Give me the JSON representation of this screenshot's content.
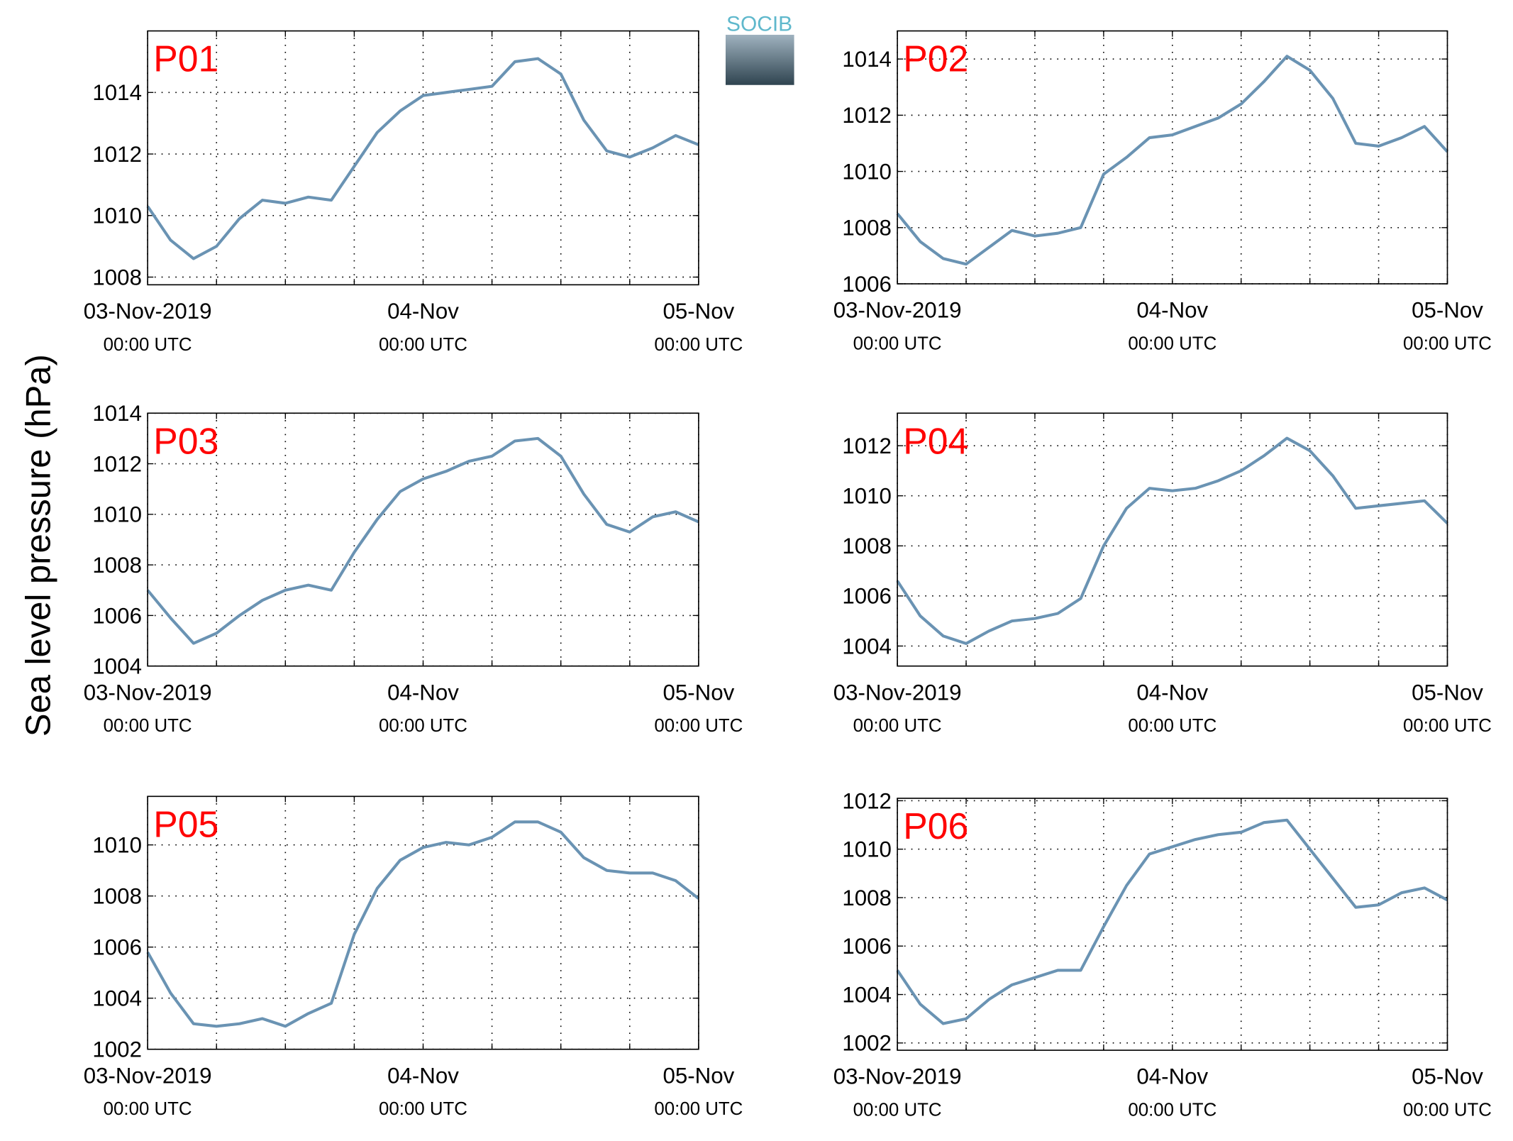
{
  "ylabel": "Sea level pressure (hPa)",
  "logo": "SOCIB",
  "chart_data": [
    {
      "type": "line",
      "title": "P01",
      "color": "#6a93b3",
      "x": [
        0,
        2,
        4,
        6,
        8,
        10,
        12,
        14,
        16,
        18,
        20,
        22,
        24,
        26,
        28,
        30,
        32,
        34,
        36,
        38,
        40,
        42,
        44,
        46,
        48
      ],
      "values": [
        1010.3,
        1009.2,
        1008.6,
        1009.0,
        1009.9,
        1010.5,
        1010.4,
        1010.6,
        1010.5,
        1011.6,
        1012.7,
        1013.4,
        1013.9,
        1014.0,
        1014.1,
        1014.2,
        1015.0,
        1015.1,
        1014.6,
        1013.1,
        1012.1,
        1011.9,
        1012.2,
        1012.6,
        1012.3
      ],
      "xlim": [
        0,
        48
      ],
      "xticks": [
        {
          "value": 0,
          "label": [
            "03-Nov-2019",
            "00:00 UTC"
          ]
        },
        {
          "value": 6,
          "label": null
        },
        {
          "value": 12,
          "label": null
        },
        {
          "value": 18,
          "label": null
        },
        {
          "value": 24,
          "label": [
            "04-Nov",
            "00:00 UTC"
          ]
        },
        {
          "value": 30,
          "label": null
        },
        {
          "value": 36,
          "label": null
        },
        {
          "value": 42,
          "label": null
        },
        {
          "value": 48,
          "label": [
            "05-Nov",
            "00:00 UTC"
          ]
        }
      ],
      "ylim": [
        1007.75,
        1016
      ],
      "yticks": [
        1008,
        1010,
        1012,
        1014
      ],
      "grid": true
    },
    {
      "type": "line",
      "title": "P02",
      "color": "#6a93b3",
      "x": [
        0,
        2,
        4,
        6,
        8,
        10,
        12,
        14,
        16,
        18,
        20,
        22,
        24,
        26,
        28,
        30,
        32,
        34,
        36,
        38,
        40,
        42,
        44,
        46,
        48
      ],
      "values": [
        1008.5,
        1007.5,
        1006.9,
        1006.7,
        1007.3,
        1007.9,
        1007.7,
        1007.8,
        1008.0,
        1009.9,
        1010.5,
        1011.2,
        1011.3,
        1011.6,
        1011.9,
        1012.4,
        1013.2,
        1014.1,
        1013.6,
        1012.6,
        1011.0,
        1010.9,
        1011.2,
        1011.6,
        1010.7
      ],
      "xlim": [
        0,
        48
      ],
      "xticks": [
        {
          "value": 0,
          "label": [
            "03-Nov-2019",
            "00:00 UTC"
          ]
        },
        {
          "value": 6,
          "label": null
        },
        {
          "value": 12,
          "label": null
        },
        {
          "value": 18,
          "label": null
        },
        {
          "value": 24,
          "label": [
            "04-Nov",
            "00:00 UTC"
          ]
        },
        {
          "value": 30,
          "label": null
        },
        {
          "value": 36,
          "label": null
        },
        {
          "value": 42,
          "label": null
        },
        {
          "value": 48,
          "label": [
            "05-Nov",
            "00:00 UTC"
          ]
        }
      ],
      "ylim": [
        1006,
        1015
      ],
      "yticks": [
        1006,
        1008,
        1010,
        1012,
        1014
      ],
      "grid": true
    },
    {
      "type": "line",
      "title": "P03",
      "color": "#6a93b3",
      "x": [
        0,
        2,
        4,
        6,
        8,
        10,
        12,
        14,
        16,
        18,
        20,
        22,
        24,
        26,
        28,
        30,
        32,
        34,
        36,
        38,
        40,
        42,
        44,
        46,
        48
      ],
      "values": [
        1007.0,
        1005.9,
        1004.9,
        1005.3,
        1006.0,
        1006.6,
        1007.0,
        1007.2,
        1007.0,
        1008.5,
        1009.8,
        1010.9,
        1011.4,
        1011.7,
        1012.1,
        1012.3,
        1012.9,
        1013.0,
        1012.3,
        1010.8,
        1009.6,
        1009.3,
        1009.9,
        1010.1,
        1009.7
      ],
      "xlim": [
        0,
        48
      ],
      "xticks": [
        {
          "value": 0,
          "label": [
            "03-Nov-2019",
            "00:00 UTC"
          ]
        },
        {
          "value": 6,
          "label": null
        },
        {
          "value": 12,
          "label": null
        },
        {
          "value": 18,
          "label": null
        },
        {
          "value": 24,
          "label": [
            "04-Nov",
            "00:00 UTC"
          ]
        },
        {
          "value": 30,
          "label": null
        },
        {
          "value": 36,
          "label": null
        },
        {
          "value": 42,
          "label": null
        },
        {
          "value": 48,
          "label": [
            "05-Nov",
            "00:00 UTC"
          ]
        }
      ],
      "ylim": [
        1004,
        1014
      ],
      "yticks": [
        1004,
        1006,
        1008,
        1010,
        1012,
        1014
      ],
      "grid": true
    },
    {
      "type": "line",
      "title": "P04",
      "color": "#6a93b3",
      "x": [
        0,
        2,
        4,
        6,
        8,
        10,
        12,
        14,
        16,
        18,
        20,
        22,
        24,
        26,
        28,
        30,
        32,
        34,
        36,
        38,
        40,
        42,
        44,
        46,
        48
      ],
      "values": [
        1006.6,
        1005.2,
        1004.4,
        1004.1,
        1004.6,
        1005.0,
        1005.1,
        1005.3,
        1005.9,
        1008.0,
        1009.5,
        1010.3,
        1010.2,
        1010.3,
        1010.6,
        1011.0,
        1011.6,
        1012.3,
        1011.8,
        1010.8,
        1009.5,
        1009.6,
        1009.7,
        1009.8,
        1008.9
      ],
      "xlim": [
        0,
        48
      ],
      "xticks": [
        {
          "value": 0,
          "label": [
            "03-Nov-2019",
            "00:00 UTC"
          ]
        },
        {
          "value": 6,
          "label": null
        },
        {
          "value": 12,
          "label": null
        },
        {
          "value": 18,
          "label": null
        },
        {
          "value": 24,
          "label": [
            "04-Nov",
            "00:00 UTC"
          ]
        },
        {
          "value": 30,
          "label": null
        },
        {
          "value": 36,
          "label": null
        },
        {
          "value": 42,
          "label": null
        },
        {
          "value": 48,
          "label": [
            "05-Nov",
            "00:00 UTC"
          ]
        }
      ],
      "ylim": [
        1003.2,
        1013.3
      ],
      "yticks": [
        1004,
        1006,
        1008,
        1010,
        1012
      ],
      "grid": true
    },
    {
      "type": "line",
      "title": "P05",
      "color": "#6a93b3",
      "x": [
        0,
        2,
        4,
        6,
        8,
        10,
        12,
        14,
        16,
        18,
        20,
        22,
        24,
        26,
        28,
        30,
        32,
        34,
        36,
        38,
        40,
        42,
        44,
        46,
        48
      ],
      "values": [
        1005.8,
        1004.2,
        1003.0,
        1002.9,
        1003.0,
        1003.2,
        1002.9,
        1003.4,
        1003.8,
        1006.5,
        1008.3,
        1009.4,
        1009.9,
        1010.1,
        1010.0,
        1010.3,
        1010.9,
        1010.9,
        1010.5,
        1009.5,
        1009.0,
        1008.9,
        1008.9,
        1008.6,
        1007.9
      ],
      "xlim": [
        0,
        48
      ],
      "xticks": [
        {
          "value": 0,
          "label": [
            "03-Nov-2019",
            "00:00 UTC"
          ]
        },
        {
          "value": 6,
          "label": null
        },
        {
          "value": 12,
          "label": null
        },
        {
          "value": 18,
          "label": null
        },
        {
          "value": 24,
          "label": [
            "04-Nov",
            "00:00 UTC"
          ]
        },
        {
          "value": 30,
          "label": null
        },
        {
          "value": 36,
          "label": null
        },
        {
          "value": 42,
          "label": null
        },
        {
          "value": 48,
          "label": [
            "05-Nov",
            "00:00 UTC"
          ]
        }
      ],
      "ylim": [
        1002,
        1011.9
      ],
      "yticks": [
        1002,
        1004,
        1006,
        1008,
        1010
      ],
      "grid": true
    },
    {
      "type": "line",
      "title": "P06",
      "color": "#6a93b3",
      "x": [
        0,
        2,
        4,
        6,
        8,
        10,
        12,
        14,
        16,
        18,
        20,
        22,
        24,
        26,
        28,
        30,
        32,
        34,
        36,
        38,
        40,
        42,
        44,
        46,
        48
      ],
      "values": [
        1005.0,
        1003.6,
        1002.8,
        1003.0,
        1003.8,
        1004.4,
        1004.7,
        1005.0,
        1005.0,
        1006.8,
        1008.5,
        1009.8,
        1010.1,
        1010.4,
        1010.6,
        1010.7,
        1011.1,
        1011.2,
        1010.0,
        1008.8,
        1007.6,
        1007.7,
        1008.2,
        1008.4,
        1007.9
      ],
      "xlim": [
        0,
        48
      ],
      "xticks": [
        {
          "value": 0,
          "label": [
            "03-Nov-2019",
            "00:00 UTC"
          ]
        },
        {
          "value": 6,
          "label": null
        },
        {
          "value": 12,
          "label": null
        },
        {
          "value": 18,
          "label": null
        },
        {
          "value": 24,
          "label": [
            "04-Nov",
            "00:00 UTC"
          ]
        },
        {
          "value": 30,
          "label": null
        },
        {
          "value": 36,
          "label": null
        },
        {
          "value": 42,
          "label": null
        },
        {
          "value": 48,
          "label": [
            "05-Nov",
            "00:00 UTC"
          ]
        }
      ],
      "ylim": [
        1001.7,
        1012.1
      ],
      "yticks": [
        1002,
        1004,
        1006,
        1008,
        1010,
        1012
      ],
      "grid": true
    }
  ]
}
